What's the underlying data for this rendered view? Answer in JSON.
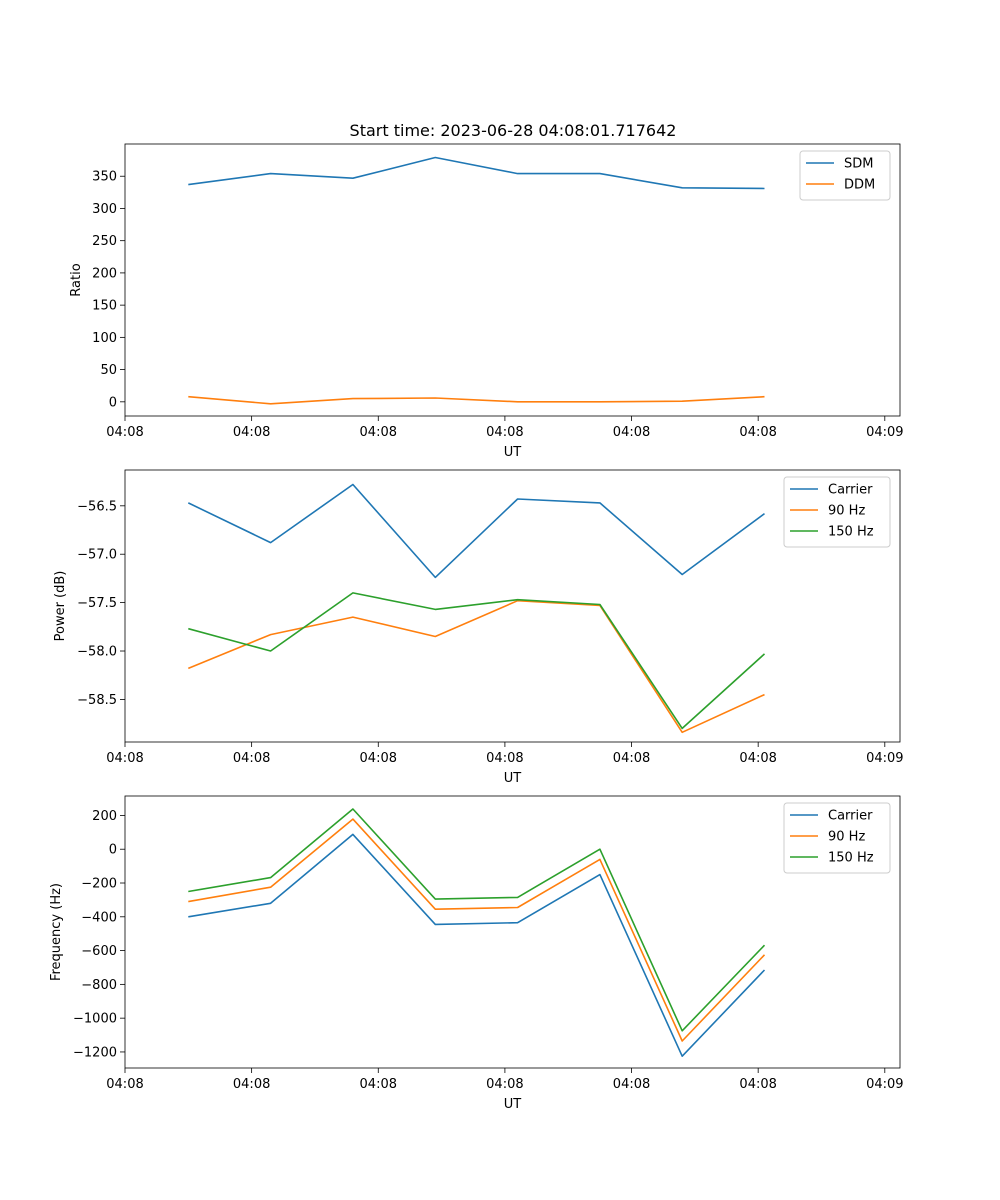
{
  "figure": {
    "title": "Start time: 2023-06-28 04:08:01.717642"
  },
  "colors": {
    "blue": "#1f77b4",
    "orange": "#ff7f0e",
    "green": "#2ca02c"
  },
  "chart_data": [
    {
      "type": "line",
      "title": "Start time: 2023-06-28 04:08:01.717642",
      "xlabel": "UT",
      "ylabel": "Ratio",
      "x_tick_labels": [
        "04:08",
        "04:08",
        "04:08",
        "04:08",
        "04:08",
        "04:08",
        "04:09"
      ],
      "xlim": [
        0,
        6.12
      ],
      "x": [
        0.5,
        1.15,
        1.8,
        2.45,
        3.1,
        3.75,
        4.4,
        5.05
      ],
      "ylim": [
        -22,
        400
      ],
      "yticks": [
        0,
        50,
        100,
        150,
        200,
        250,
        300,
        350
      ],
      "ytick_labels": [
        "0",
        "50",
        "100",
        "150",
        "200",
        "250",
        "300",
        "350"
      ],
      "legend": "top-right",
      "grid": false,
      "series": [
        {
          "name": "SDM",
          "color": "#1f77b4",
          "values": [
            337,
            354,
            347,
            379,
            354,
            354,
            332,
            331
          ]
        },
        {
          "name": "DDM",
          "color": "#ff7f0e",
          "values": [
            8,
            -3,
            5,
            6,
            0,
            0,
            1,
            8
          ]
        }
      ]
    },
    {
      "type": "line",
      "xlabel": "UT",
      "ylabel": "Power (dB)",
      "x_tick_labels": [
        "04:08",
        "04:08",
        "04:08",
        "04:08",
        "04:08",
        "04:08",
        "04:09"
      ],
      "xlim": [
        0,
        6.12
      ],
      "x": [
        0.5,
        1.15,
        1.8,
        2.45,
        3.1,
        3.75,
        4.4,
        5.05
      ],
      "ylim": [
        -58.94,
        -56.13
      ],
      "yticks": [
        -58.5,
        -58.0,
        -57.5,
        -57.0,
        -56.5
      ],
      "ytick_labels": [
        "−58.5",
        "−58.0",
        "−57.5",
        "−57.0",
        "−56.5"
      ],
      "legend": "top-right",
      "grid": false,
      "series": [
        {
          "name": "Carrier",
          "color": "#1f77b4",
          "values": [
            -56.47,
            -56.88,
            -56.28,
            -57.24,
            -56.43,
            -56.47,
            -57.21,
            -56.58
          ]
        },
        {
          "name": "90 Hz",
          "color": "#ff7f0e",
          "values": [
            -58.18,
            -57.83,
            -57.65,
            -57.85,
            -57.48,
            -57.53,
            -58.84,
            -58.45
          ]
        },
        {
          "name": "150 Hz",
          "color": "#2ca02c",
          "values": [
            -57.77,
            -58.0,
            -57.4,
            -57.57,
            -57.47,
            -57.52,
            -58.8,
            -58.03
          ]
        }
      ]
    },
    {
      "type": "line",
      "xlabel": "UT",
      "ylabel": "Frequency (Hz)",
      "x_tick_labels": [
        "04:08",
        "04:08",
        "04:08",
        "04:08",
        "04:08",
        "04:08",
        "04:09"
      ],
      "xlim": [
        0,
        6.12
      ],
      "x": [
        0.5,
        1.15,
        1.8,
        2.45,
        3.1,
        3.75,
        4.4,
        5.05
      ],
      "ylim": [
        -1295,
        315
      ],
      "yticks": [
        -1200,
        -1000,
        -800,
        -600,
        -400,
        -200,
        0,
        200
      ],
      "ytick_labels": [
        "−1200",
        "−1000",
        "−800",
        "−600",
        "−400",
        "−200",
        "0",
        "200"
      ],
      "legend": "top-right",
      "grid": false,
      "series": [
        {
          "name": "Carrier",
          "color": "#1f77b4",
          "values": [
            -400,
            -320,
            88,
            -445,
            -435,
            -150,
            -1225,
            -715
          ]
        },
        {
          "name": "90 Hz",
          "color": "#ff7f0e",
          "values": [
            -310,
            -225,
            178,
            -355,
            -345,
            -60,
            -1135,
            -625
          ]
        },
        {
          "name": "150 Hz",
          "color": "#2ca02c",
          "values": [
            -250,
            -168,
            238,
            -295,
            -285,
            0,
            -1075,
            -568
          ]
        }
      ]
    }
  ]
}
